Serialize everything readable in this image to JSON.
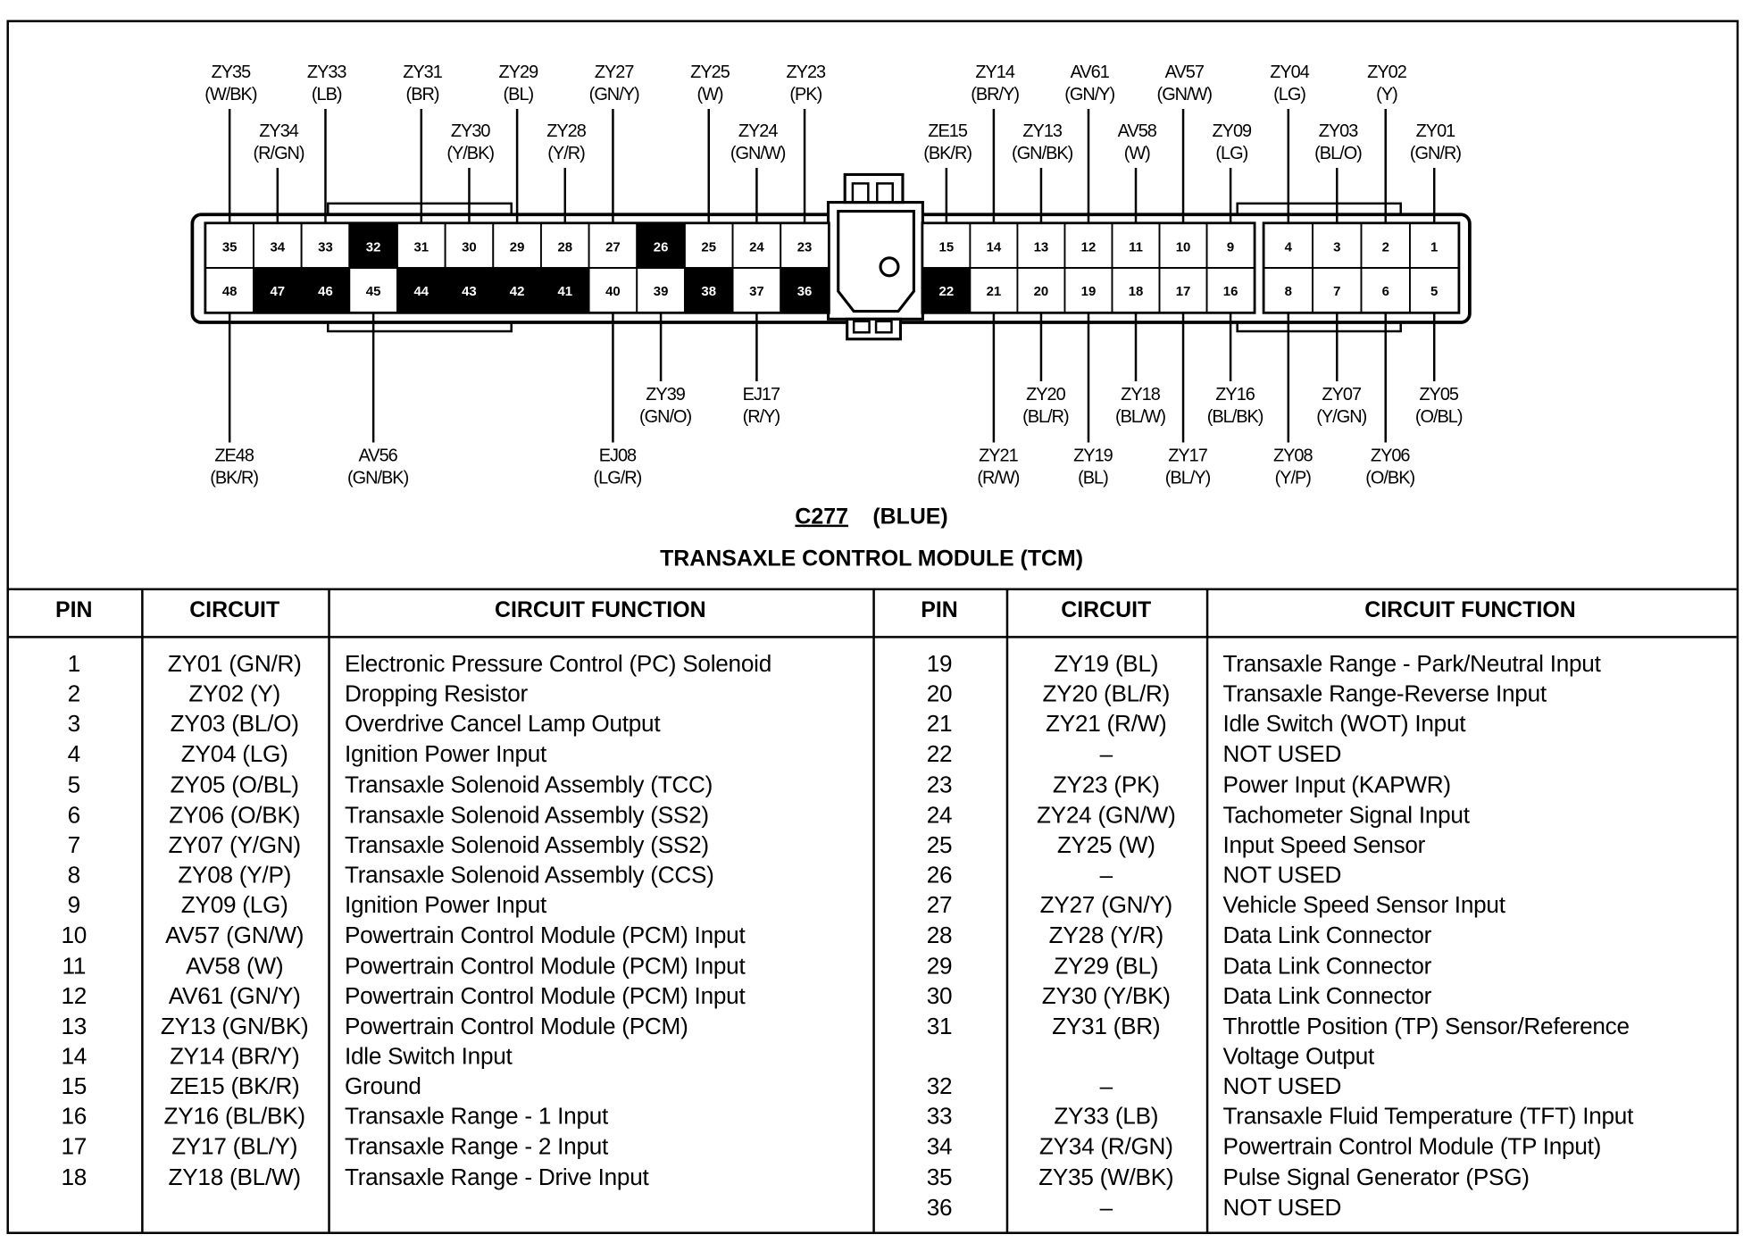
{
  "connector": {
    "id": "C277",
    "color_label": "(BLUE)",
    "title": "TRANSAXLE CONTROL MODULE (TCM)",
    "left_block": {
      "top_row": [
        35,
        34,
        33,
        32,
        31,
        30,
        29,
        28,
        27,
        26,
        25,
        24,
        23
      ],
      "bottom_row": [
        48,
        47,
        46,
        45,
        44,
        43,
        42,
        41,
        40,
        39,
        38,
        37,
        36
      ]
    },
    "middle_block": {
      "top_row": [
        15,
        14,
        13,
        12,
        11,
        10,
        9
      ],
      "bottom_row": [
        22,
        21,
        20,
        19,
        18,
        17,
        16
      ]
    },
    "right_block": {
      "top_row": [
        4,
        3,
        2,
        1
      ],
      "bottom_row": [
        8,
        7,
        6,
        5
      ]
    },
    "unused_pins": [
      32,
      26,
      47,
      46,
      44,
      43,
      42,
      41,
      38,
      36,
      22
    ],
    "labels_top": [
      {
        "pin": 35,
        "circuit": "ZY35",
        "color": "(W/BK)",
        "tier": 1
      },
      {
        "pin": 34,
        "circuit": "ZY34",
        "color": "(R/GN)",
        "tier": 2
      },
      {
        "pin": 33,
        "circuit": "ZY33",
        "color": "(LB)",
        "tier": 1
      },
      {
        "pin": 31,
        "circuit": "ZY31",
        "color": "(BR)",
        "tier": 1
      },
      {
        "pin": 30,
        "circuit": "ZY30",
        "color": "(Y/BK)",
        "tier": 2
      },
      {
        "pin": 29,
        "circuit": "ZY29",
        "color": "(BL)",
        "tier": 1
      },
      {
        "pin": 28,
        "circuit": "ZY28",
        "color": "(Y/R)",
        "tier": 2
      },
      {
        "pin": 27,
        "circuit": "ZY27",
        "color": "(GN/Y)",
        "tier": 1
      },
      {
        "pin": 25,
        "circuit": "ZY25",
        "color": "(W)",
        "tier": 1
      },
      {
        "pin": 24,
        "circuit": "ZY24",
        "color": "(GN/W)",
        "tier": 2
      },
      {
        "pin": 23,
        "circuit": "ZY23",
        "color": "(PK)",
        "tier": 1
      },
      {
        "pin": 15,
        "circuit": "ZE15",
        "color": "(BK/R)",
        "tier": 2
      },
      {
        "pin": 14,
        "circuit": "ZY14",
        "color": "(BR/Y)",
        "tier": 1
      },
      {
        "pin": 13,
        "circuit": "ZY13",
        "color": "(GN/BK)",
        "tier": 2
      },
      {
        "pin": 12,
        "circuit": "AV61",
        "color": "(GN/Y)",
        "tier": 1
      },
      {
        "pin": 11,
        "circuit": "AV58",
        "color": "(W)",
        "tier": 2
      },
      {
        "pin": 10,
        "circuit": "AV57",
        "color": "(GN/W)",
        "tier": 1
      },
      {
        "pin": 9,
        "circuit": "ZY09",
        "color": "(LG)",
        "tier": 2
      },
      {
        "pin": 4,
        "circuit": "ZY04",
        "color": "(LG)",
        "tier": 1
      },
      {
        "pin": 3,
        "circuit": "ZY03",
        "color": "(BL/O)",
        "tier": 2
      },
      {
        "pin": 2,
        "circuit": "ZY02",
        "color": "(Y)",
        "tier": 1
      },
      {
        "pin": 1,
        "circuit": "ZY01",
        "color": "(GN/R)",
        "tier": 2
      }
    ],
    "labels_bottom": [
      {
        "pin": 48,
        "circuit": "ZE48",
        "color": "(BK/R)",
        "tier": 2
      },
      {
        "pin": 45,
        "circuit": "AV56",
        "color": "(GN/BK)",
        "tier": 2
      },
      {
        "pin": 40,
        "circuit": "EJ08",
        "color": "(LG/R)",
        "tier": 2
      },
      {
        "pin": 39,
        "circuit": "ZY39",
        "color": "(GN/O)",
        "tier": 1
      },
      {
        "pin": 37,
        "circuit": "EJ17",
        "color": "(R/Y)",
        "tier": 1
      },
      {
        "pin": 21,
        "circuit": "ZY21",
        "color": "(R/W)",
        "tier": 2
      },
      {
        "pin": 20,
        "circuit": "ZY20",
        "color": "(BL/R)",
        "tier": 1
      },
      {
        "pin": 19,
        "circuit": "ZY19",
        "color": "(BL)",
        "tier": 2
      },
      {
        "pin": 18,
        "circuit": "ZY18",
        "color": "(BL/W)",
        "tier": 1
      },
      {
        "pin": 17,
        "circuit": "ZY17",
        "color": "(BL/Y)",
        "tier": 2
      },
      {
        "pin": 16,
        "circuit": "ZY16",
        "color": "(BL/BK)",
        "tier": 1
      },
      {
        "pin": 8,
        "circuit": "ZY08",
        "color": "(Y/P)",
        "tier": 2
      },
      {
        "pin": 7,
        "circuit": "ZY07",
        "color": "(Y/GN)",
        "tier": 1
      },
      {
        "pin": 6,
        "circuit": "ZY06",
        "color": "(O/BK)",
        "tier": 2
      },
      {
        "pin": 5,
        "circuit": "ZY05",
        "color": "(O/BL)",
        "tier": 1
      }
    ]
  },
  "table": {
    "headers": [
      "PIN",
      "CIRCUIT",
      "CIRCUIT FUNCTION",
      "PIN",
      "CIRCUIT",
      "CIRCUIT FUNCTION"
    ],
    "left_rows": [
      {
        "pin": "1",
        "circuit": "ZY01 (GN/R)",
        "function": "Electronic Pressure Control (PC) Solenoid"
      },
      {
        "pin": "2",
        "circuit": "ZY02 (Y)",
        "function": "Dropping Resistor"
      },
      {
        "pin": "3",
        "circuit": "ZY03 (BL/O)",
        "function": "Overdrive Cancel Lamp Output"
      },
      {
        "pin": "4",
        "circuit": "ZY04 (LG)",
        "function": "Ignition Power Input"
      },
      {
        "pin": "5",
        "circuit": "ZY05 (O/BL)",
        "function": "Transaxle Solenoid Assembly (TCC)"
      },
      {
        "pin": "6",
        "circuit": "ZY06 (O/BK)",
        "function": "Transaxle Solenoid Assembly (SS2)"
      },
      {
        "pin": "7",
        "circuit": "ZY07 (Y/GN)",
        "function": "Transaxle Solenoid Assembly (SS2)"
      },
      {
        "pin": "8",
        "circuit": "ZY08 (Y/P)",
        "function": "Transaxle Solenoid Assembly (CCS)"
      },
      {
        "pin": "9",
        "circuit": "ZY09 (LG)",
        "function": "Ignition Power Input"
      },
      {
        "pin": "10",
        "circuit": "AV57 (GN/W)",
        "function": "Powertrain Control Module (PCM) Input"
      },
      {
        "pin": "11",
        "circuit": "AV58 (W)",
        "function": "Powertrain Control Module (PCM) Input"
      },
      {
        "pin": "12",
        "circuit": "AV61 (GN/Y)",
        "function": "Powertrain Control Module (PCM) Input"
      },
      {
        "pin": "13",
        "circuit": "ZY13 (GN/BK)",
        "function": "Powertrain Control Module (PCM)"
      },
      {
        "pin": "14",
        "circuit": "ZY14 (BR/Y)",
        "function": "Idle Switch Input"
      },
      {
        "pin": "15",
        "circuit": "ZE15 (BK/R)",
        "function": "Ground"
      },
      {
        "pin": "16",
        "circuit": "ZY16 (BL/BK)",
        "function": "Transaxle Range - 1 Input"
      },
      {
        "pin": "17",
        "circuit": "ZY17 (BL/Y)",
        "function": "Transaxle Range - 2 Input"
      },
      {
        "pin": "18",
        "circuit": "ZY18 (BL/W)",
        "function": "Transaxle Range - Drive Input"
      }
    ],
    "right_rows": [
      {
        "pin": "19",
        "circuit": "ZY19 (BL)",
        "function": "Transaxle Range - Park/Neutral Input"
      },
      {
        "pin": "20",
        "circuit": "ZY20 (BL/R)",
        "function": "Transaxle Range-Reverse Input"
      },
      {
        "pin": "21",
        "circuit": "ZY21 (R/W)",
        "function": "Idle Switch (WOT) Input"
      },
      {
        "pin": "22",
        "circuit": "–",
        "function": "NOT USED"
      },
      {
        "pin": "23",
        "circuit": "ZY23 (PK)",
        "function": "Power Input (KAPWR)"
      },
      {
        "pin": "24",
        "circuit": "ZY24 (GN/W)",
        "function": "Tachometer Signal Input"
      },
      {
        "pin": "25",
        "circuit": "ZY25 (W)",
        "function": "Input Speed Sensor"
      },
      {
        "pin": "26",
        "circuit": "–",
        "function": "NOT USED"
      },
      {
        "pin": "27",
        "circuit": "ZY27 (GN/Y)",
        "function": "Vehicle Speed Sensor Input"
      },
      {
        "pin": "28",
        "circuit": "ZY28 (Y/R)",
        "function": "Data Link Connector"
      },
      {
        "pin": "29",
        "circuit": "ZY29 (BL)",
        "function": "Data Link Connector"
      },
      {
        "pin": "30",
        "circuit": "ZY30 (Y/BK)",
        "function": "Data Link Connector"
      },
      {
        "pin": "31",
        "circuit": "ZY31 (BR)",
        "function": "Throttle Position (TP) Sensor/Reference"
      },
      {
        "pin": "",
        "circuit": "",
        "function": "Voltage Output"
      },
      {
        "pin": "32",
        "circuit": "–",
        "function": "NOT USED"
      },
      {
        "pin": "33",
        "circuit": "ZY33 (LB)",
        "function": "Transaxle Fluid Temperature (TFT) Input"
      },
      {
        "pin": "34",
        "circuit": "ZY34 (R/GN)",
        "function": "Powertrain Control Module (TP Input)"
      },
      {
        "pin": "35",
        "circuit": "ZY35 (W/BK)",
        "function": "Pulse Signal Generator (PSG)"
      },
      {
        "pin": "36",
        "circuit": "–",
        "function": "NOT USED"
      }
    ]
  }
}
